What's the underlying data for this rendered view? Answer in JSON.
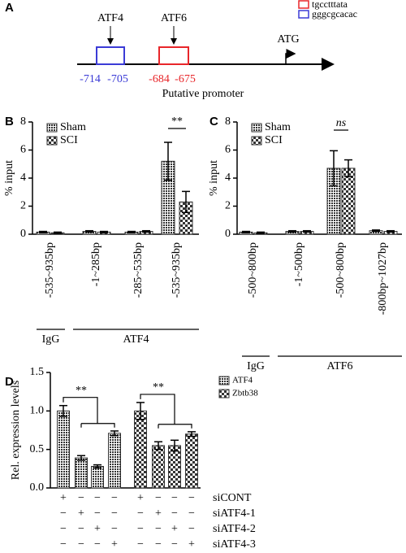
{
  "diagram": {
    "panel": "A",
    "legend": [
      {
        "label": "tgcctttata",
        "color": "#e8262a"
      },
      {
        "label": "gggcgcacac",
        "color": "#3b3bd6"
      }
    ],
    "sites": [
      {
        "label": "ATF4",
        "start": "-714",
        "end": "-705",
        "color": "#3b3bd6"
      },
      {
        "label": "ATF6",
        "start": "-684",
        "end": "-675",
        "color": "#e8262a"
      }
    ],
    "tss": "ATG",
    "caption": "Putative promoter"
  },
  "chart_data": [
    {
      "type": "bar",
      "panel": "B",
      "ylabel": "% input",
      "ylim": [
        0,
        8
      ],
      "yticks": [
        0,
        2,
        4,
        6,
        8
      ],
      "categories": [
        "-535~935bp",
        "-1~285bp",
        "-285~535bp",
        "-535~935bp"
      ],
      "groups": [
        "IgG",
        "ATF4"
      ],
      "series": [
        {
          "name": "Sham",
          "color": "#333333",
          "pattern": "dots",
          "values": [
            0.15,
            0.2,
            0.15,
            5.2
          ],
          "errors": [
            0.05,
            0.05,
            0.05,
            1.35
          ]
        },
        {
          "name": "SCI",
          "color": "#333333",
          "pattern": "check",
          "values": [
            0.1,
            0.15,
            0.2,
            2.3
          ],
          "errors": [
            0.05,
            0.05,
            0.05,
            0.75
          ]
        }
      ],
      "annotations": [
        "**"
      ]
    },
    {
      "type": "bar",
      "panel": "C",
      "ylabel": "% input",
      "ylim": [
        0,
        8
      ],
      "yticks": [
        0,
        2,
        4,
        6,
        8
      ],
      "categories": [
        "-500~800bp",
        "-1~500bp",
        "-500~800bp",
        "-800bp~1027bp"
      ],
      "groups": [
        "IgG",
        "ATF6"
      ],
      "series": [
        {
          "name": "Sham",
          "color": "#333333",
          "pattern": "dots",
          "values": [
            0.15,
            0.2,
            4.7,
            0.25
          ],
          "errors": [
            0.05,
            0.05,
            1.25,
            0.05
          ]
        },
        {
          "name": "SCI",
          "color": "#333333",
          "pattern": "check",
          "values": [
            0.1,
            0.2,
            4.7,
            0.2
          ],
          "errors": [
            0.05,
            0.05,
            0.6,
            0.05
          ]
        }
      ],
      "annotations": [
        "ns"
      ]
    },
    {
      "type": "bar",
      "panel": "D",
      "ylabel": "Rel. expression levels",
      "ylim": [
        0,
        1.5
      ],
      "yticks": [
        {
          "value": 0,
          "label": "0.0"
        },
        {
          "value": 0.5,
          "label": "0.5"
        },
        {
          "value": 1,
          "label": "1.0"
        },
        {
          "value": 1.5,
          "label": "1.5"
        }
      ],
      "series": [
        {
          "name": "ATF4",
          "color": "#333333",
          "pattern": "dots",
          "values": [
            1.0,
            0.39,
            0.28,
            0.71
          ],
          "errors": [
            0.07,
            0.03,
            0.02,
            0.03
          ]
        },
        {
          "name": "Zbtb38",
          "color": "#333333",
          "pattern": "check",
          "values": [
            1.0,
            0.55,
            0.55,
            0.7
          ],
          "errors": [
            0.11,
            0.05,
            0.07,
            0.03
          ]
        }
      ],
      "conditions": [
        {
          "label": "siCONT",
          "signs": [
            "+",
            "−",
            "−",
            "−",
            "+",
            "−",
            "−",
            "−"
          ]
        },
        {
          "label": "siATF4-1",
          "signs": [
            "−",
            "+",
            "−",
            "−",
            "−",
            "+",
            "−",
            "−"
          ]
        },
        {
          "label": "siATF4-2",
          "signs": [
            "−",
            "−",
            "+",
            "−",
            "−",
            "−",
            "+",
            "−"
          ]
        },
        {
          "label": "siATF4-3",
          "signs": [
            "−",
            "−",
            "−",
            "+",
            "−",
            "−",
            "−",
            "+"
          ]
        }
      ],
      "annotations": [
        "**",
        "**"
      ]
    }
  ]
}
